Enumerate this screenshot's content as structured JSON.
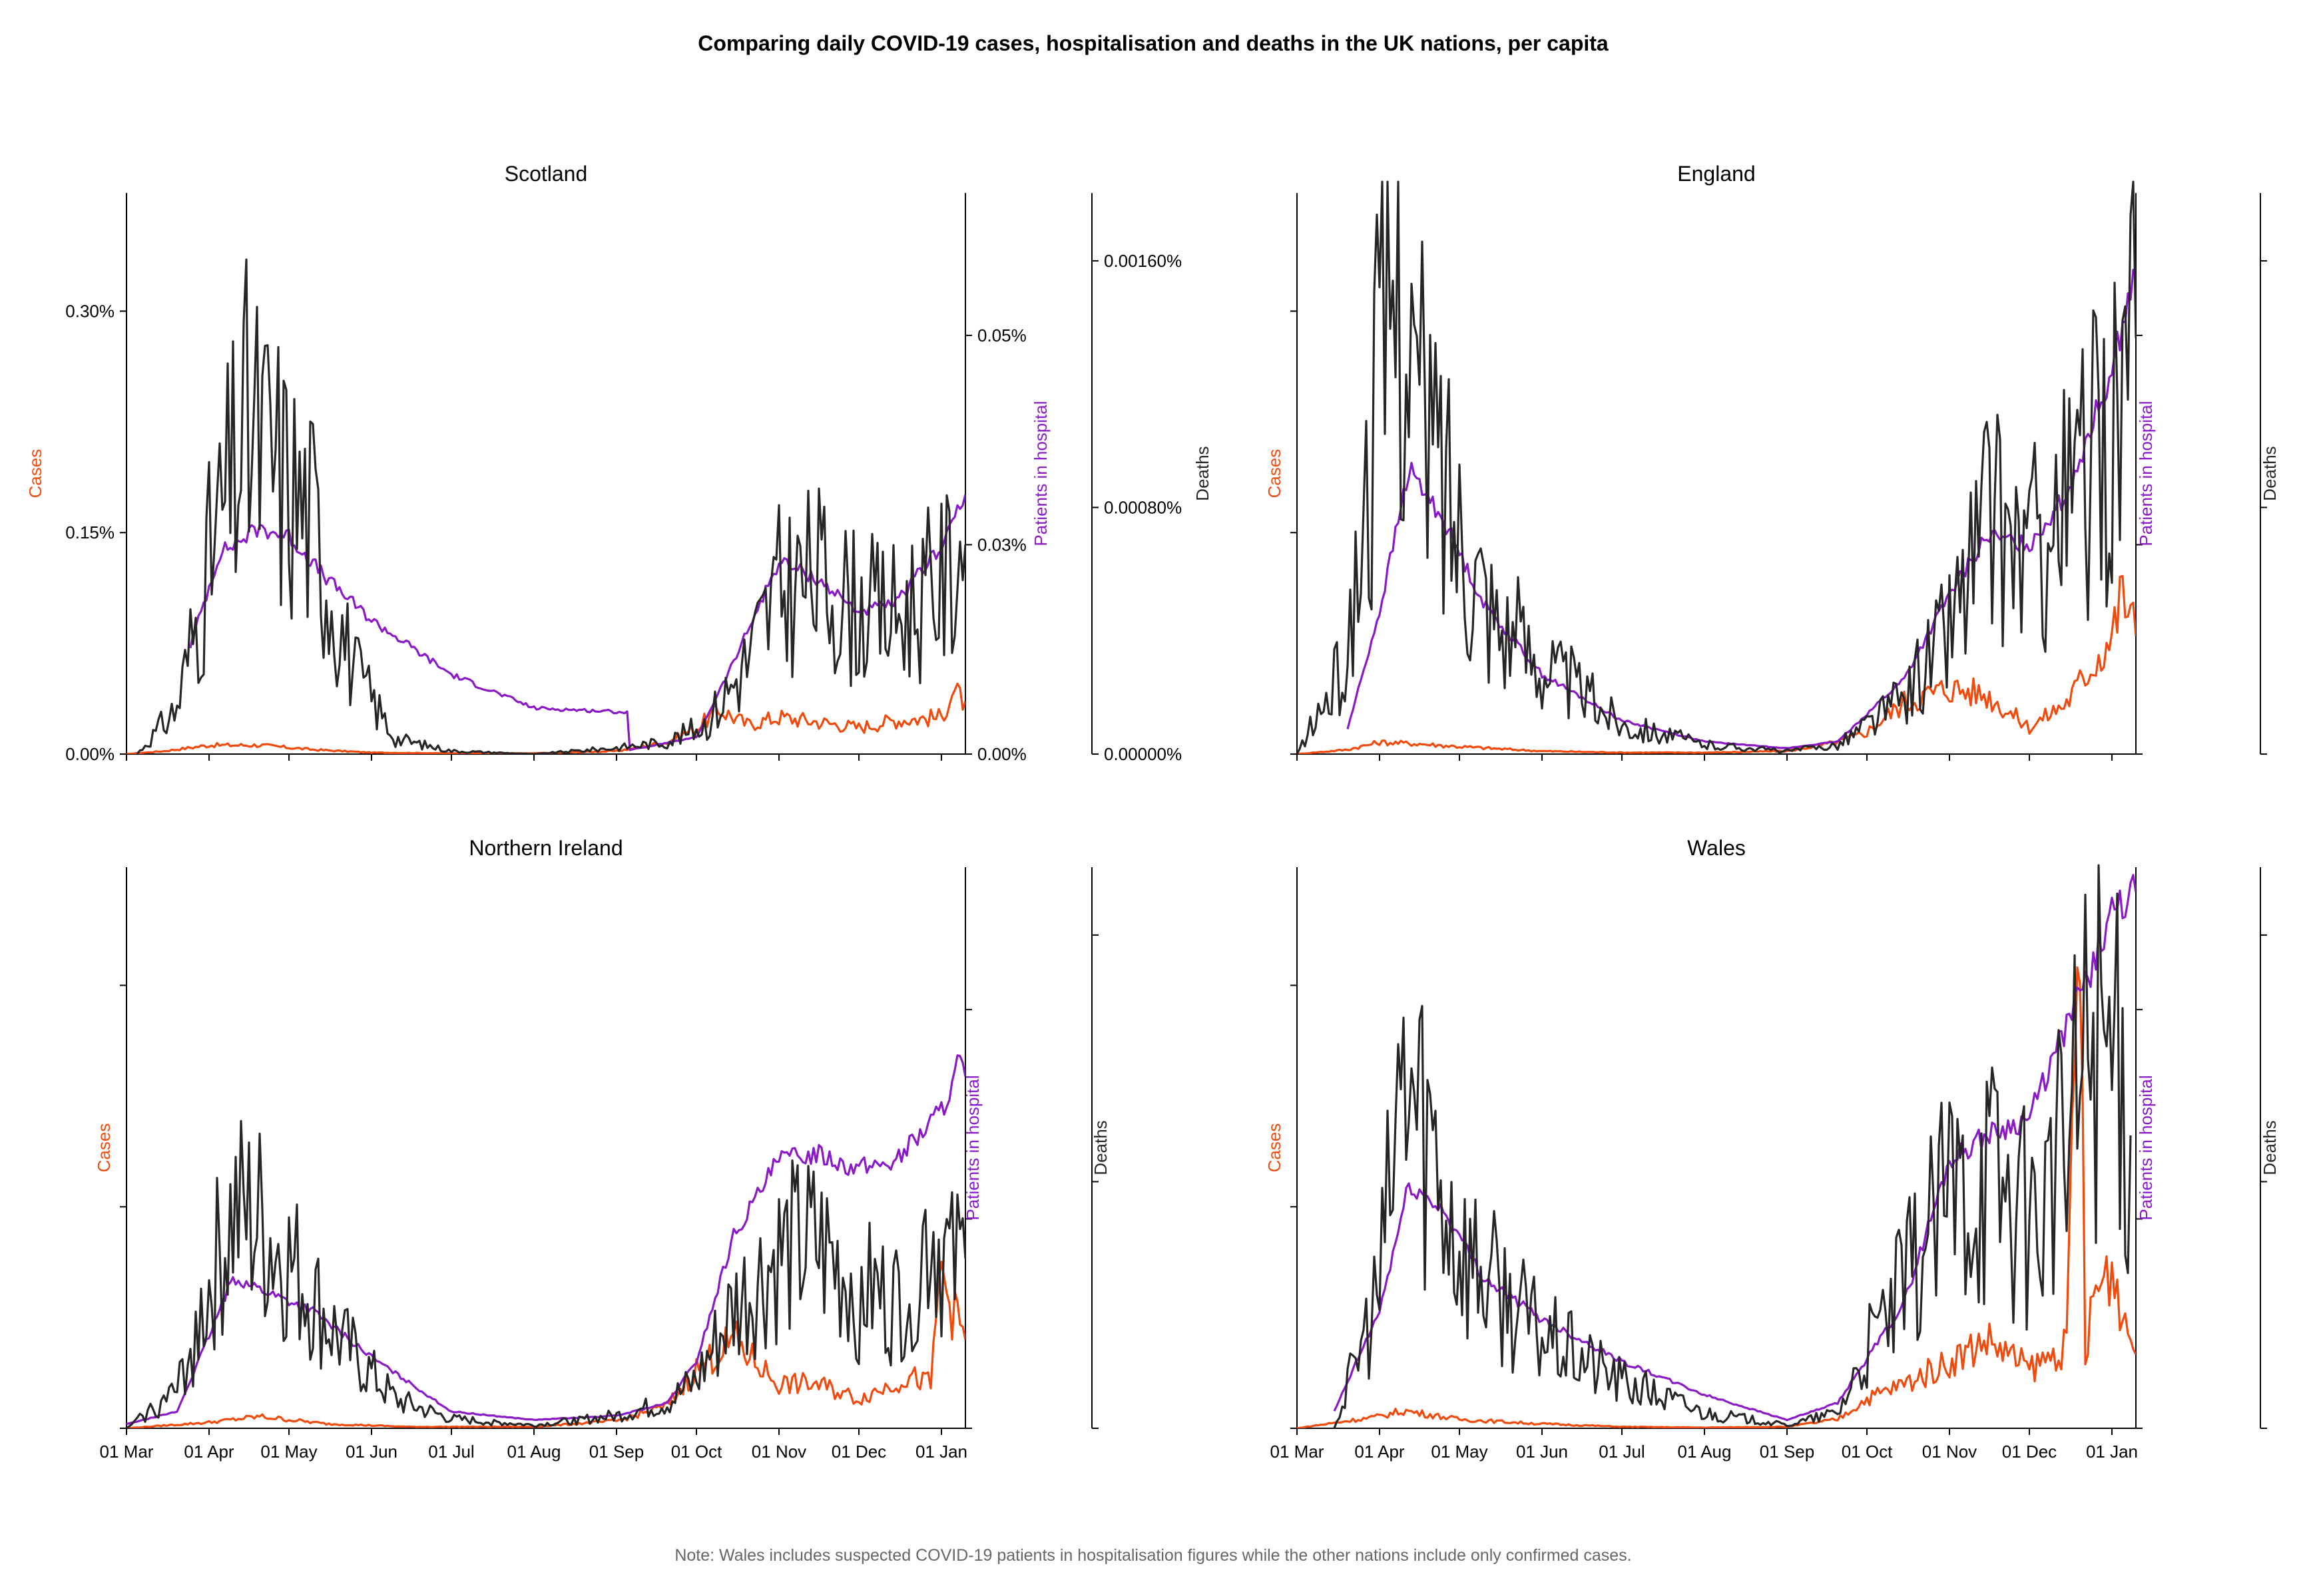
{
  "title": "Comparing daily COVID-19 cases, hospitalisation and deaths in the UK nations, per capita",
  "note": "Note: Wales includes suspected COVID-19 patients in hospitalisation figures while the other nations include only confirmed cases.",
  "colors": {
    "cases": "#f24a0c",
    "hospital": "#8a19c8",
    "deaths": "#262626",
    "note": "#666666"
  },
  "axis_labels": {
    "cases": "Cases",
    "hospital": "Patients in hospital",
    "deaths": "Deaths"
  },
  "x_ticks": [
    "01 Mar",
    "01 Apr",
    "01 May",
    "01 Jun",
    "01 Jul",
    "01 Aug",
    "01 Sep",
    "01 Oct",
    "01 Nov",
    "01 Dec",
    "01 Jan"
  ],
  "chart_data": [
    {
      "type": "line",
      "title": "Scotland",
      "x_range": [
        "2020-03-01",
        "2021-01-10"
      ],
      "y_left": {
        "label": "Cases",
        "ylim": [
          0,
          0.0038
        ],
        "ticks": [
          "0.00%",
          "0.15%",
          "0.30%"
        ],
        "tick_values": [
          0,
          0.0015,
          0.003
        ]
      },
      "y_right": {
        "label": "Patients in hospital",
        "ylim": [
          0,
          0.00067
        ],
        "ticks": [
          "0.00%",
          "0.03%",
          "0.05%"
        ],
        "tick_values": [
          0,
          0.00025,
          0.0005
        ]
      },
      "y_far": {
        "label": "Deaths",
        "ylim": [
          0,
          1.82e-05
        ],
        "ticks": [
          "0.00000%",
          "0.00080%",
          "0.00160%"
        ],
        "tick_values": [
          0,
          8e-06,
          1.6e-05
        ]
      },
      "series": [
        {
          "name": "Cases",
          "axis": "left",
          "x": [
            "2020-03-01",
            "2020-03-15",
            "2020-04-01",
            "2020-04-20",
            "2020-05-10",
            "2020-06-01",
            "2020-07-01",
            "2020-08-01",
            "2020-09-01",
            "2020-09-20",
            "2020-10-01",
            "2020-10-10",
            "2020-10-20",
            "2020-11-01",
            "2020-11-15",
            "2020-12-01",
            "2020-12-15",
            "2021-01-01",
            "2021-01-05",
            "2021-01-10"
          ],
          "values": [
            0,
            2e-05,
            6e-05,
            6e-05,
            3e-05,
            1e-05,
            5e-06,
            5e-06,
            2e-05,
            8e-05,
            0.00018,
            0.0003,
            0.0002,
            0.00025,
            0.00022,
            0.00018,
            0.00023,
            0.00025,
            0.00042,
            0.00036
          ]
        },
        {
          "name": "Patients in hospital",
          "axis": "right",
          "x": [
            "2020-03-25",
            "2020-04-05",
            "2020-04-20",
            "2020-05-01",
            "2020-05-15",
            "2020-06-01",
            "2020-07-01",
            "2020-08-01",
            "2020-09-05",
            "2020-09-06",
            "2020-10-01",
            "2020-10-15",
            "2020-11-01",
            "2020-11-15",
            "2020-12-01",
            "2020-12-15",
            "2021-01-01",
            "2021-01-10"
          ],
          "values": [
            0.00013,
            0.00024,
            0.00027,
            0.00026,
            0.00021,
            0.00016,
            9.5e-05,
            5.5e-05,
            5e-05,
            5e-06,
            2e-05,
            0.00011,
            0.00023,
            0.00021,
            0.00017,
            0.00018,
            0.00025,
            0.00031
          ]
        },
        {
          "name": "Deaths",
          "axis": "far",
          "x": [
            "2020-03-05",
            "2020-03-20",
            "2020-04-01",
            "2020-04-15",
            "2020-04-25",
            "2020-05-10",
            "2020-05-25",
            "2020-06-10",
            "2020-07-01",
            "2020-08-01",
            "2020-09-01",
            "2020-09-20",
            "2020-10-05",
            "2020-10-20",
            "2020-11-01",
            "2020-11-15",
            "2020-12-01",
            "2020-12-15",
            "2021-01-01",
            "2021-01-10"
          ],
          "values": [
            0,
            1.5e-06,
            6.2e-06,
            1.05e-05,
            9.5e-06,
            7.5e-06,
            2.8e-06,
            5e-07,
            1e-07,
            0,
            2e-07,
            4e-07,
            1e-06,
            3e-06,
            5.3e-06,
            5.8e-06,
            4.7e-06,
            4.5e-06,
            5.5e-06,
            6.8e-06
          ]
        }
      ]
    },
    {
      "type": "line",
      "title": "England",
      "x_range": [
        "2020-03-01",
        "2021-01-10"
      ],
      "y_left": {
        "label": "Cases",
        "ylim": [
          0,
          0.0038
        ],
        "ticks": [
          "",
          "",
          ""
        ],
        "tick_values": [
          0,
          0.0015,
          0.003
        ]
      },
      "y_right": {
        "label": "Patients in hospital",
        "ylim": [
          0,
          0.00067
        ],
        "ticks": [
          "",
          "",
          ""
        ],
        "tick_values": [
          0,
          0.00025,
          0.0005
        ]
      },
      "y_far": {
        "label": "Deaths",
        "ylim": [
          0,
          1.82e-05
        ],
        "ticks": [
          "",
          "",
          ""
        ],
        "tick_values": [
          0,
          8e-06,
          1.6e-05
        ]
      },
      "series": [
        {
          "name": "Cases",
          "axis": "left",
          "x": [
            "2020-03-01",
            "2020-03-20",
            "2020-04-01",
            "2020-04-15",
            "2020-05-01",
            "2020-06-01",
            "2020-07-01",
            "2020-08-01",
            "2020-09-01",
            "2020-09-20",
            "2020-10-01",
            "2020-10-15",
            "2020-11-01",
            "2020-11-15",
            "2020-12-01",
            "2020-12-15",
            "2021-01-01",
            "2021-01-05",
            "2021-01-10"
          ],
          "values": [
            0,
            3e-05,
            8e-05,
            7e-05,
            5e-05,
            2e-05,
            1e-05,
            1e-05,
            2e-05,
            8e-05,
            0.00015,
            0.00035,
            0.00045,
            0.0004,
            0.00018,
            0.00035,
            0.0008,
            0.0011,
            0.0008
          ]
        },
        {
          "name": "Patients in hospital",
          "axis": "right",
          "x": [
            "2020-03-20",
            "2020-04-01",
            "2020-04-12",
            "2020-04-25",
            "2020-05-10",
            "2020-06-01",
            "2020-07-01",
            "2020-08-01",
            "2020-09-01",
            "2020-09-20",
            "2020-10-15",
            "2020-11-01",
            "2020-11-15",
            "2020-12-01",
            "2020-12-15",
            "2021-01-01",
            "2021-01-10"
          ],
          "values": [
            3e-05,
            0.00017,
            0.00034,
            0.00028,
            0.00018,
            9.5e-05,
            4e-05,
            1.5e-05,
            7e-06,
            1.5e-05,
            9e-05,
            0.00019,
            0.00026,
            0.00025,
            0.00031,
            0.00046,
            0.00058
          ]
        },
        {
          "name": "Deaths",
          "axis": "far",
          "x": [
            "2020-03-01",
            "2020-03-20",
            "2020-04-01",
            "2020-04-08",
            "2020-04-15",
            "2020-05-01",
            "2020-05-15",
            "2020-06-01",
            "2020-07-01",
            "2020-08-01",
            "2020-09-01",
            "2020-09-20",
            "2020-10-15",
            "2020-11-01",
            "2020-11-15",
            "2020-12-01",
            "2020-12-15",
            "2021-01-01",
            "2021-01-10"
          ],
          "values": [
            0,
            3e-06,
            1.25e-05,
            1.63e-05,
            1.15e-05,
            7.5e-06,
            4.5e-06,
            3e-06,
            1e-06,
            3e-07,
            1e-07,
            3e-07,
            1.8e-06,
            4.2e-06,
            7.5e-06,
            6.5e-06,
            8e-06,
            1.05e-05,
            1.35e-05
          ]
        }
      ]
    },
    {
      "type": "line",
      "title": "Northern Ireland",
      "x_range": [
        "2020-03-01",
        "2021-01-10"
      ],
      "y_left": {
        "label": "Cases",
        "ylim": [
          0,
          0.0038
        ],
        "ticks": [
          "",
          "",
          ""
        ],
        "tick_values": [
          0,
          0.0015,
          0.003
        ]
      },
      "y_right": {
        "label": "Patients in hospital",
        "ylim": [
          0,
          0.00067
        ],
        "ticks": [
          "",
          "",
          ""
        ],
        "tick_values": [
          0,
          0.00025,
          0.0005
        ]
      },
      "y_far": {
        "label": "Deaths",
        "ylim": [
          0,
          1.82e-05
        ],
        "ticks": [
          "",
          "",
          ""
        ],
        "tick_values": [
          0,
          8e-06,
          1.6e-05
        ]
      },
      "series": [
        {
          "name": "Cases",
          "axis": "left",
          "x": [
            "2020-03-01",
            "2020-04-01",
            "2020-04-20",
            "2020-05-15",
            "2020-06-15",
            "2020-08-01",
            "2020-09-01",
            "2020-09-20",
            "2020-10-01",
            "2020-10-15",
            "2020-10-20",
            "2020-11-01",
            "2020-11-15",
            "2020-12-01",
            "2020-12-20",
            "2020-12-28",
            "2021-01-01",
            "2021-01-05",
            "2021-01-10"
          ],
          "values": [
            0,
            4e-05,
            8e-05,
            3e-05,
            1e-05,
            1e-05,
            5e-05,
            0.00015,
            0.0004,
            0.0006,
            0.0005,
            0.0003,
            0.0003,
            0.0002,
            0.00035,
            0.0003,
            0.0011,
            0.0008,
            0.0006
          ]
        },
        {
          "name": "Patients in hospital",
          "axis": "right",
          "x": [
            "2020-03-01",
            "2020-03-20",
            "2020-04-01",
            "2020-04-10",
            "2020-04-25",
            "2020-05-10",
            "2020-06-01",
            "2020-07-01",
            "2020-08-01",
            "2020-09-01",
            "2020-09-20",
            "2020-10-01",
            "2020-10-15",
            "2020-11-01",
            "2020-11-15",
            "2020-12-01",
            "2020-12-15",
            "2021-01-01",
            "2021-01-08",
            "2021-01-10"
          ],
          "values": [
            5e-06,
            2e-05,
            0.00011,
            0.00018,
            0.00016,
            0.00014,
            8.5e-05,
            2e-05,
            1e-05,
            1.5e-05,
            3e-05,
            8e-05,
            0.00023,
            0.00032,
            0.00033,
            0.00031,
            0.00032,
            0.00038,
            0.00044,
            0.00042
          ]
        },
        {
          "name": "Deaths",
          "axis": "far",
          "x": [
            "2020-03-01",
            "2020-03-20",
            "2020-04-01",
            "2020-04-10",
            "2020-04-20",
            "2020-05-05",
            "2020-05-20",
            "2020-06-10",
            "2020-07-01",
            "2020-08-01",
            "2020-09-01",
            "2020-09-20",
            "2020-10-01",
            "2020-10-15",
            "2020-11-01",
            "2020-11-15",
            "2020-12-01",
            "2020-12-15",
            "2020-12-28",
            "2021-01-05",
            "2021-01-10"
          ],
          "values": [
            0,
            1.2e-06,
            4.5e-06,
            6.8e-06,
            6.5e-06,
            4.8e-06,
            2.8e-06,
            9e-07,
            3e-07,
            1e-07,
            4e-07,
            8e-07,
            1.5e-06,
            3.8e-06,
            5.5e-06,
            5.8e-06,
            4.5e-06,
            4e-06,
            6.5e-06,
            5e-06,
            5.5e-06
          ]
        }
      ]
    },
    {
      "type": "line",
      "title": "Wales",
      "x_range": [
        "2020-03-01",
        "2021-01-10"
      ],
      "y_left": {
        "label": "Cases",
        "ylim": [
          0,
          0.0038
        ],
        "ticks": [
          "",
          "",
          ""
        ],
        "tick_values": [
          0,
          0.0015,
          0.003
        ]
      },
      "y_right": {
        "label": "Patients in hospital",
        "ylim": [
          0,
          0.00067
        ],
        "ticks": [
          "",
          "",
          ""
        ],
        "tick_values": [
          0,
          0.00025,
          0.0005
        ]
      },
      "y_far": {
        "label": "Deaths",
        "ylim": [
          0,
          1.82e-05
        ],
        "ticks": [
          "",
          "",
          ""
        ],
        "tick_values": [
          0,
          8e-06,
          1.6e-05
        ]
      },
      "series": [
        {
          "name": "Cases",
          "axis": "left",
          "x": [
            "2020-03-01",
            "2020-03-20",
            "2020-04-01",
            "2020-04-10",
            "2020-05-01",
            "2020-06-01",
            "2020-07-01",
            "2020-08-01",
            "2020-09-01",
            "2020-09-20",
            "2020-10-01",
            "2020-10-15",
            "2020-11-01",
            "2020-11-15",
            "2020-12-01",
            "2020-12-15",
            "2020-12-20",
            "2020-12-22",
            "2020-12-25",
            "2021-01-01",
            "2021-01-05",
            "2021-01-10"
          ],
          "values": [
            0,
            5e-05,
            8e-05,
            0.00012,
            6e-05,
            3e-05,
            1e-05,
            5e-06,
            1e-05,
            6e-05,
            0.0002,
            0.0003,
            0.00045,
            0.0006,
            0.0004,
            0.00055,
            0.0036,
            0.0004,
            0.0009,
            0.0011,
            0.0008,
            0.0005
          ]
        },
        {
          "name": "Patients in hospital",
          "axis": "right",
          "x": [
            "2020-03-15",
            "2020-04-01",
            "2020-04-12",
            "2020-04-25",
            "2020-05-10",
            "2020-06-01",
            "2020-07-01",
            "2020-08-01",
            "2020-09-01",
            "2020-09-20",
            "2020-10-15",
            "2020-11-01",
            "2020-11-15",
            "2020-12-01",
            "2020-12-15",
            "2021-01-01",
            "2021-01-10"
          ],
          "values": [
            2e-05,
            0.00014,
            0.00029,
            0.00026,
            0.00018,
            0.00013,
            8e-05,
            4e-05,
            1e-05,
            3e-05,
            0.00015,
            0.00032,
            0.00035,
            0.00037,
            0.00048,
            0.00061,
            0.00064
          ]
        },
        {
          "name": "Deaths",
          "axis": "far",
          "x": [
            "2020-03-15",
            "2020-04-01",
            "2020-04-10",
            "2020-04-20",
            "2020-05-01",
            "2020-05-15",
            "2020-06-01",
            "2020-07-01",
            "2020-08-01",
            "2020-09-01",
            "2020-09-20",
            "2020-10-01",
            "2020-10-15",
            "2020-11-01",
            "2020-11-15",
            "2020-12-01",
            "2020-12-15",
            "2020-12-25",
            "2021-01-01",
            "2021-01-08"
          ],
          "values": [
            0,
            4.5e-06,
            1.15e-05,
            9.5e-06,
            6e-06,
            4.5e-06,
            3e-06,
            1.5e-06,
            5e-07,
            1e-07,
            5e-07,
            2.5e-06,
            4.5e-06,
            7.5e-06,
            8.5e-06,
            6.5e-06,
            9e-06,
            1.35e-05,
            1.2e-05,
            9.5e-06
          ]
        }
      ]
    }
  ]
}
